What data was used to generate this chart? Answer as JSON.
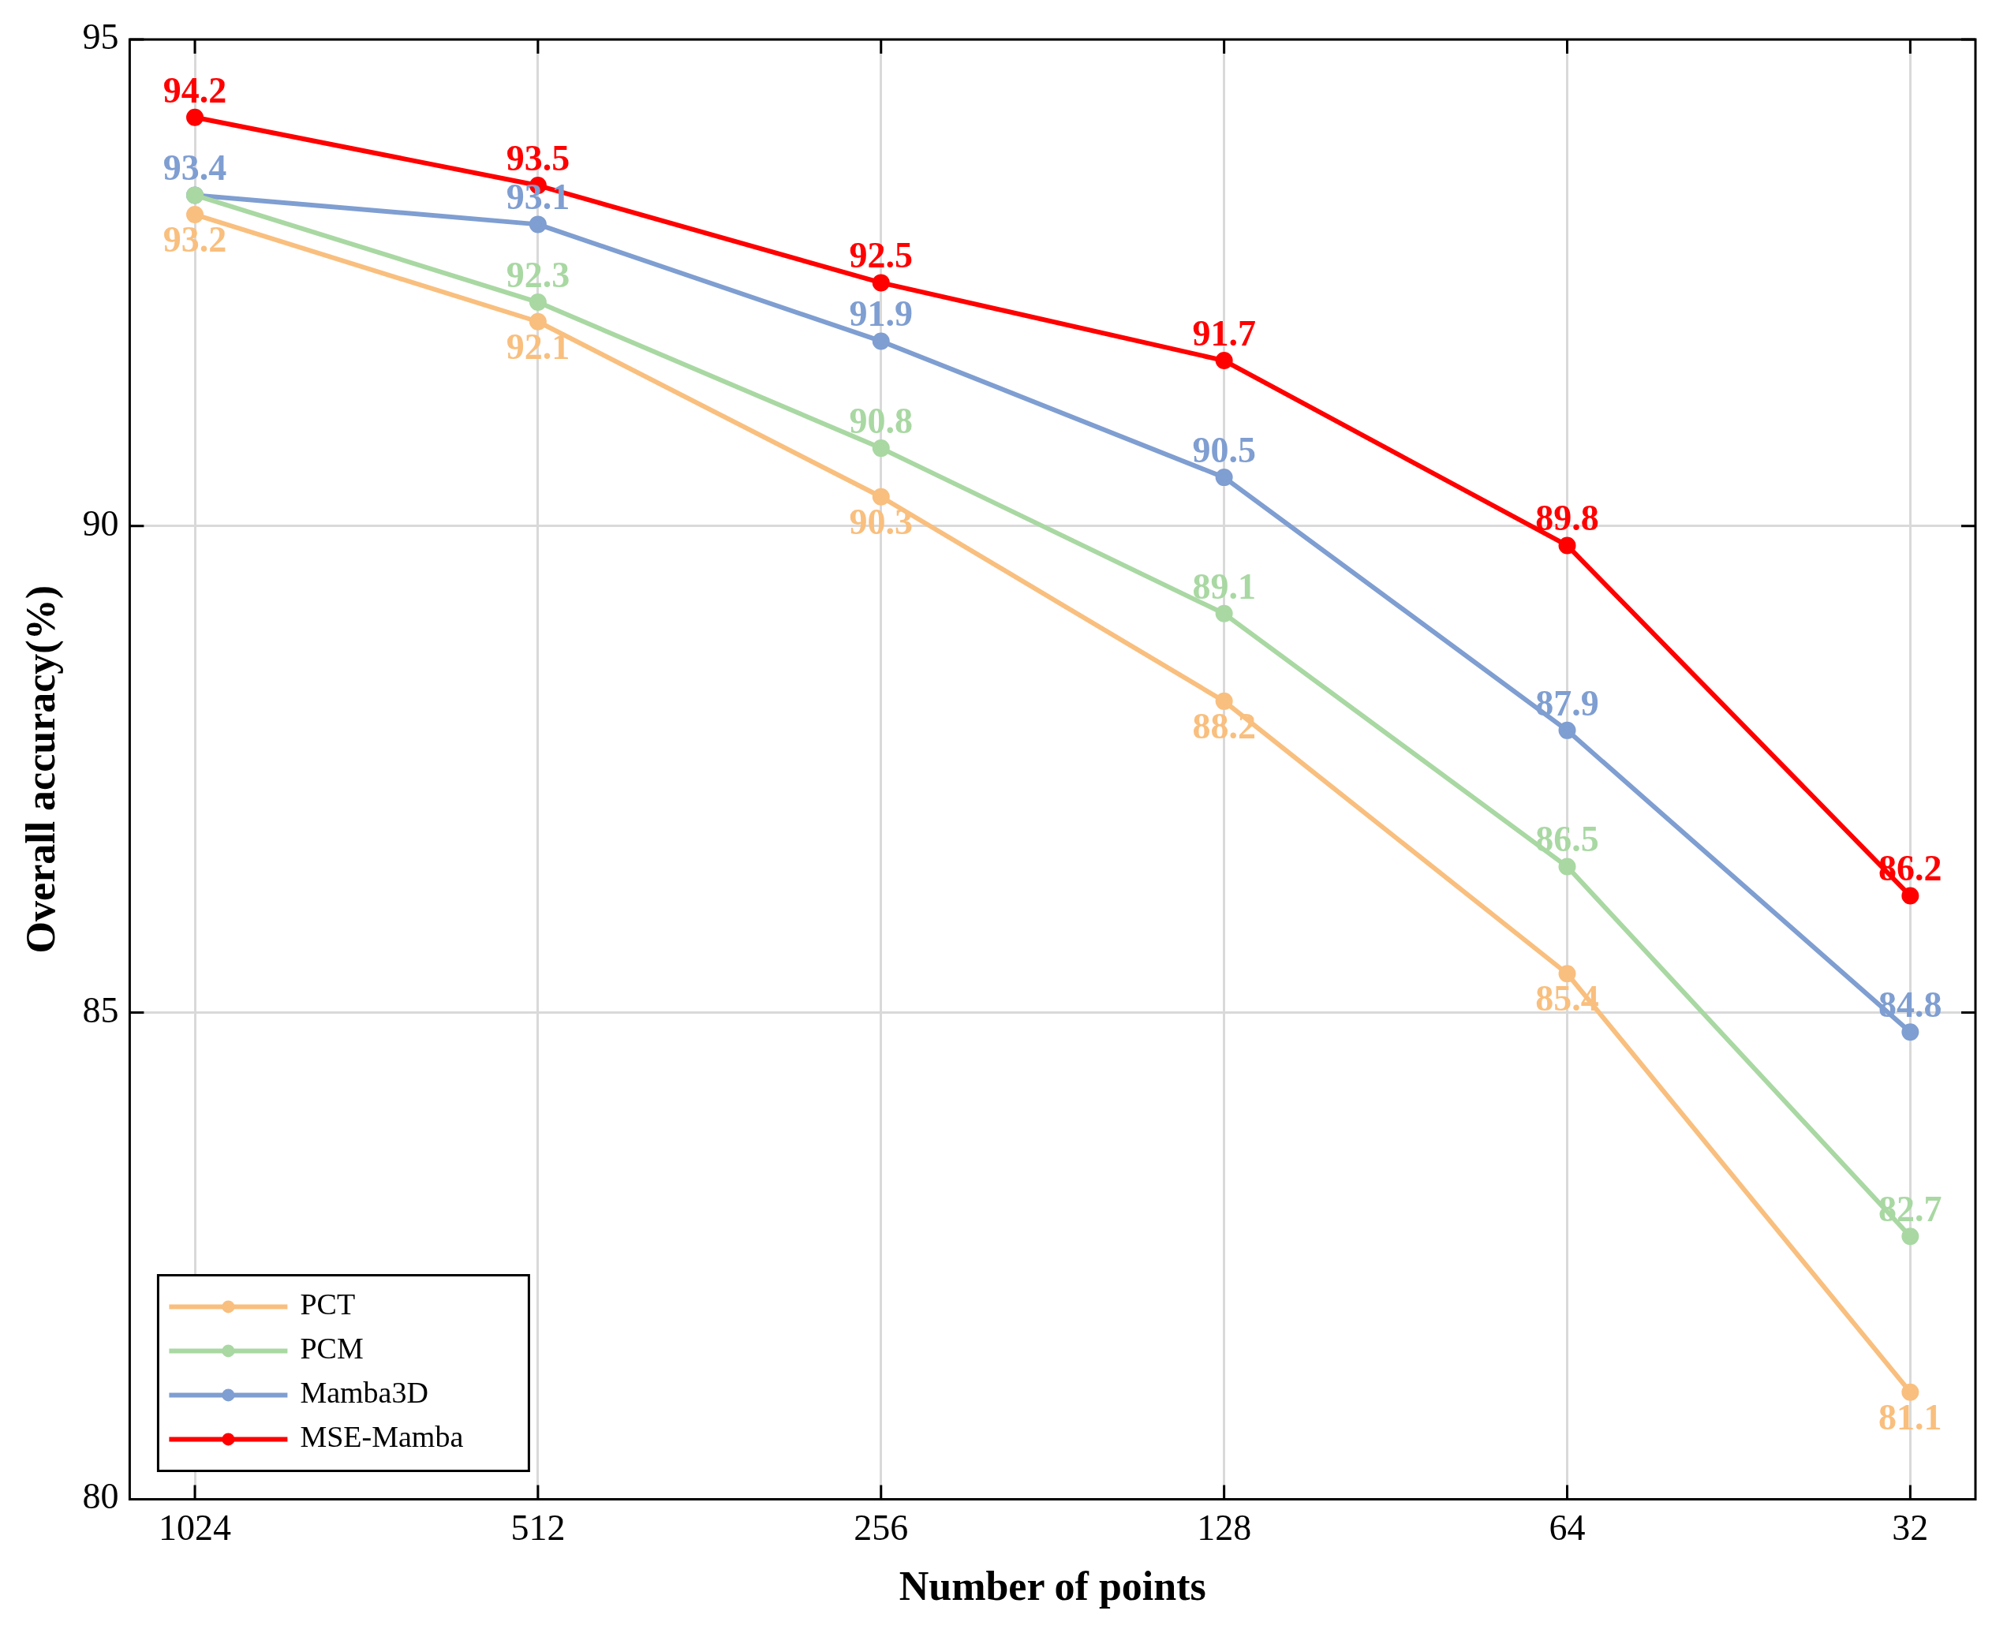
{
  "chart_data": {
    "type": "line",
    "xlabel": "Number of points",
    "ylabel": "Overall accuracy(%)",
    "categories": [
      "1024",
      "512",
      "256",
      "128",
      "64",
      "32"
    ],
    "ylim": [
      80,
      95
    ],
    "yticks": [
      80,
      85,
      90,
      95
    ],
    "grid": true,
    "legend": "bottom left",
    "marker": "circle",
    "line_style": "solid",
    "series": [
      {
        "name": "PCT",
        "color": "#f9bf7e",
        "values": [
          93.2,
          92.1,
          90.3,
          88.2,
          85.4,
          81.1
        ],
        "value_labels": [
          "93.2",
          "92.1",
          "90.3",
          "88.2",
          "85.4",
          "81.1"
        ]
      },
      {
        "name": "PCM",
        "color": "#a9d8a3",
        "values": [
          93.4,
          92.3,
          90.8,
          89.1,
          86.5,
          82.7
        ],
        "value_labels": [
          null,
          "92.3",
          "90.8",
          "89.1",
          "86.5",
          "82.7"
        ]
      },
      {
        "name": "Mamba3D",
        "color": "#7f9ed1",
        "values": [
          93.4,
          93.1,
          91.9,
          90.5,
          87.9,
          84.8
        ],
        "value_labels": [
          "93.4",
          "93.1",
          "91.9",
          "90.5",
          "87.9",
          "84.8"
        ]
      },
      {
        "name": "MSE-Mamba",
        "color": "#ff0000",
        "values": [
          94.2,
          93.5,
          92.5,
          91.7,
          89.8,
          86.2
        ],
        "value_labels": [
          "94.2",
          "93.5",
          "92.5",
          "91.7",
          "89.8",
          "86.2"
        ]
      }
    ]
  }
}
